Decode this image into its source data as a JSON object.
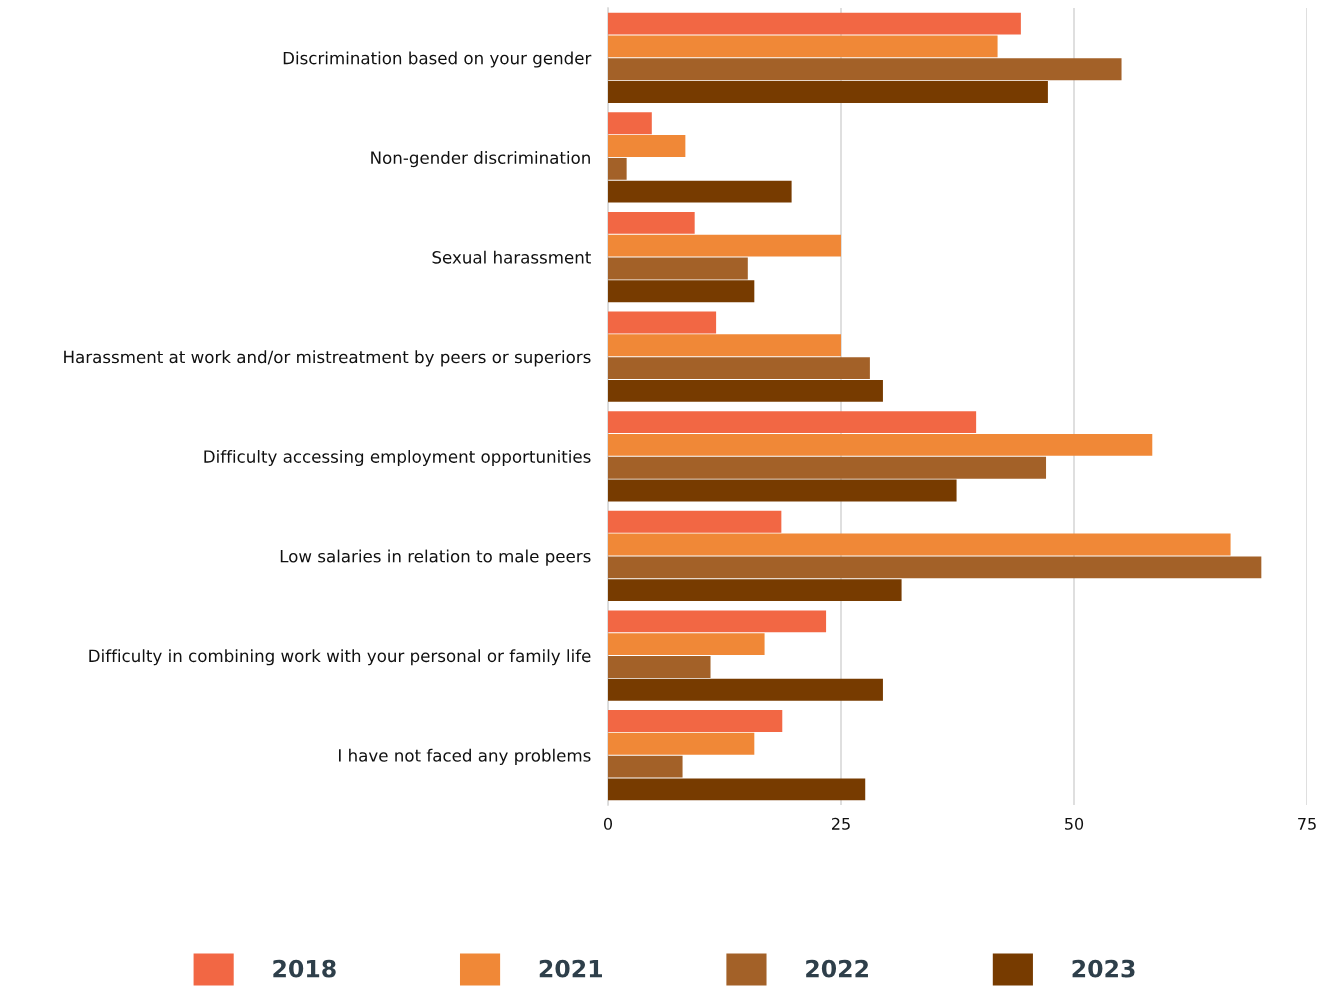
{
  "chart_data": {
    "type": "bar",
    "orientation": "horizontal",
    "categories": [
      "Discrimination based on your gender",
      "Non-gender discrimination",
      "Sexual harassment",
      "Harassment at work and/or mistreatment by peers or superiors",
      "Difficulty accessing employment opportunities",
      "Low salaries in relation to male peers",
      "Difficulty in combining work with your personal or family life",
      "I have not faced any problems"
    ],
    "series": [
      {
        "name": "2018",
        "color": "#f26744",
        "values": [
          44.3,
          4.7,
          9.3,
          11.6,
          39.5,
          18.6,
          23.4,
          18.7
        ]
      },
      {
        "name": "2021",
        "color": "#f08837",
        "values": [
          41.8,
          8.3,
          25.0,
          25.0,
          58.4,
          66.8,
          16.8,
          15.7
        ]
      },
      {
        "name": "2022",
        "color": "#a36128",
        "values": [
          55.1,
          2.0,
          15.0,
          28.1,
          47.0,
          70.1,
          11.0,
          8.0
        ]
      },
      {
        "name": "2023",
        "color": "#773b00",
        "values": [
          47.2,
          19.7,
          15.7,
          29.5,
          37.4,
          31.5,
          29.5,
          27.6
        ]
      }
    ],
    "xlim": [
      0,
      75
    ],
    "xticks": [
      0,
      25,
      50,
      75
    ],
    "grid": "x",
    "legend": "bottom"
  }
}
